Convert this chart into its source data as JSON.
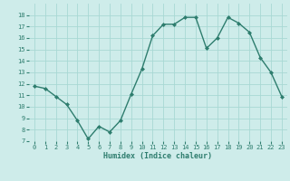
{
  "x": [
    0,
    1,
    2,
    3,
    4,
    5,
    6,
    7,
    8,
    9,
    10,
    11,
    12,
    13,
    14,
    15,
    16,
    17,
    18,
    19,
    20,
    21,
    22,
    23
  ],
  "y": [
    11.8,
    11.6,
    10.9,
    10.2,
    8.8,
    7.2,
    8.3,
    7.8,
    8.8,
    11.1,
    13.3,
    16.2,
    17.2,
    17.2,
    17.8,
    17.8,
    15.1,
    16.0,
    17.8,
    17.3,
    16.5,
    14.3,
    13.0,
    10.9
  ],
  "xlim": [
    -0.5,
    23.5
  ],
  "ylim": [
    7,
    19
  ],
  "yticks": [
    7,
    8,
    9,
    10,
    11,
    12,
    13,
    14,
    15,
    16,
    17,
    18
  ],
  "xticks": [
    0,
    1,
    2,
    3,
    4,
    5,
    6,
    7,
    8,
    9,
    10,
    11,
    12,
    13,
    14,
    15,
    16,
    17,
    18,
    19,
    20,
    21,
    22,
    23
  ],
  "xlabel": "Humidex (Indice chaleur)",
  "line_color": "#2e7d6e",
  "marker": "D",
  "marker_size": 2.0,
  "bg_color": "#ceecea",
  "grid_color": "#a8d8d4",
  "tick_color": "#2e7d6e",
  "line_width": 1.0,
  "tick_fontsize": 5.0,
  "xlabel_fontsize": 6.0
}
